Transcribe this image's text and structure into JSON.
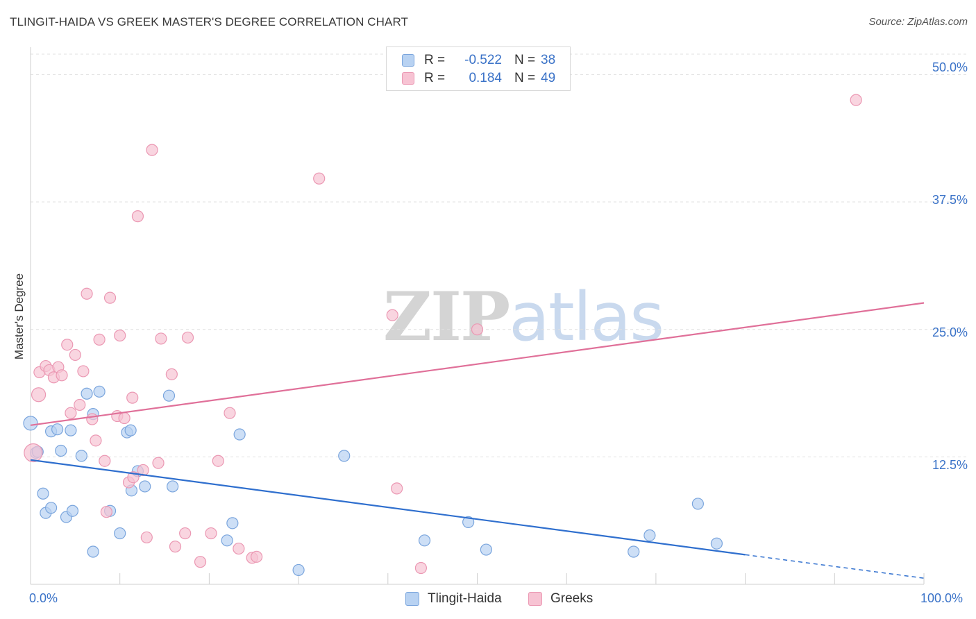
{
  "header": {
    "title": "TLINGIT-HAIDA VS GREEK MASTER'S DEGREE CORRELATION CHART",
    "source": "Source: ZipAtlas.com"
  },
  "watermark": {
    "zip": "ZIP",
    "atlas": "atlas"
  },
  "colors": {
    "blue_fill": "#b8d2f2",
    "blue_stroke": "#7aa5dd",
    "blue_line": "#2f6fce",
    "pink_fill": "#f7c3d3",
    "pink_stroke": "#eb98b3",
    "pink_line": "#e07099",
    "tick_text": "#3b73c8",
    "grid": "#e0e0e0"
  },
  "legend": {
    "series": [
      {
        "name": "Tlingit-Haida",
        "r_label": "R =",
        "r_value": "-0.522",
        "n_label": "N =",
        "n_value": "38"
      },
      {
        "name": "Greeks",
        "r_label": "R =",
        "r_value": "0.184",
        "n_label": "N =",
        "n_value": "49"
      }
    ]
  },
  "chart_data": {
    "type": "scatter",
    "title": "TLINGIT-HAIDA VS GREEK MASTER'S DEGREE CORRELATION CHART",
    "xlabel": "",
    "ylabel": "Master's Degree",
    "xlim": [
      0,
      100
    ],
    "ylim": [
      0,
      52
    ],
    "x_tick_labels": [
      "0.0%",
      "100.0%"
    ],
    "y_ticks": [
      12.5,
      25.0,
      37.5,
      50.0
    ],
    "y_tick_labels": [
      "12.5%",
      "25.0%",
      "37.5%",
      "50.0%"
    ],
    "grid": true,
    "legend_position": "top-center",
    "series": [
      {
        "name": "Tlingit-Haida",
        "color": "#b8d2f2",
        "points": [
          [
            0.0,
            15.8
          ],
          [
            0.6,
            12.9
          ],
          [
            0.8,
            13.0
          ],
          [
            1.4,
            8.9
          ],
          [
            1.7,
            7.0
          ],
          [
            2.3,
            7.5
          ],
          [
            2.3,
            15.0
          ],
          [
            3.0,
            15.2
          ],
          [
            3.4,
            13.1
          ],
          [
            4.0,
            6.6
          ],
          [
            4.5,
            15.1
          ],
          [
            4.7,
            7.2
          ],
          [
            5.7,
            12.6
          ],
          [
            6.3,
            18.7
          ],
          [
            7.0,
            16.7
          ],
          [
            7.0,
            3.2
          ],
          [
            7.7,
            18.9
          ],
          [
            8.9,
            7.2
          ],
          [
            10.0,
            5.0
          ],
          [
            10.8,
            14.9
          ],
          [
            11.2,
            15.1
          ],
          [
            11.3,
            9.2
          ],
          [
            12.0,
            11.1
          ],
          [
            12.8,
            9.6
          ],
          [
            15.5,
            18.5
          ],
          [
            15.9,
            9.6
          ],
          [
            22.0,
            4.3
          ],
          [
            22.6,
            6.0
          ],
          [
            23.4,
            14.7
          ],
          [
            30.0,
            1.4
          ],
          [
            35.1,
            12.6
          ],
          [
            44.1,
            4.3
          ],
          [
            49.0,
            6.1
          ],
          [
            51.0,
            3.4
          ],
          [
            67.5,
            3.2
          ],
          [
            69.3,
            4.8
          ],
          [
            74.7,
            7.9
          ],
          [
            76.8,
            4.0
          ]
        ]
      },
      {
        "name": "Greeks",
        "color": "#f7c3d3",
        "points": [
          [
            0.3,
            12.9
          ],
          [
            0.9,
            18.6
          ],
          [
            1.0,
            20.8
          ],
          [
            1.7,
            21.4
          ],
          [
            2.1,
            21.0
          ],
          [
            2.6,
            20.3
          ],
          [
            3.1,
            21.3
          ],
          [
            3.5,
            20.5
          ],
          [
            4.1,
            23.5
          ],
          [
            4.5,
            16.8
          ],
          [
            5.0,
            22.5
          ],
          [
            5.5,
            17.6
          ],
          [
            5.9,
            20.9
          ],
          [
            6.3,
            28.5
          ],
          [
            6.9,
            16.2
          ],
          [
            7.3,
            14.1
          ],
          [
            7.7,
            24.0
          ],
          [
            8.3,
            12.1
          ],
          [
            8.5,
            7.1
          ],
          [
            8.9,
            28.1
          ],
          [
            9.7,
            16.5
          ],
          [
            10.0,
            24.4
          ],
          [
            10.5,
            16.3
          ],
          [
            11.0,
            10.0
          ],
          [
            11.4,
            18.3
          ],
          [
            11.5,
            10.5
          ],
          [
            12.0,
            36.1
          ],
          [
            12.6,
            11.2
          ],
          [
            13.0,
            4.6
          ],
          [
            13.6,
            42.6
          ],
          [
            14.3,
            11.9
          ],
          [
            14.6,
            24.1
          ],
          [
            15.8,
            20.6
          ],
          [
            16.2,
            3.7
          ],
          [
            17.3,
            5.0
          ],
          [
            17.6,
            24.2
          ],
          [
            19.0,
            2.2
          ],
          [
            20.2,
            5.0
          ],
          [
            21.0,
            12.1
          ],
          [
            22.3,
            16.8
          ],
          [
            23.3,
            3.5
          ],
          [
            24.8,
            2.6
          ],
          [
            25.3,
            2.7
          ],
          [
            32.3,
            39.8
          ],
          [
            40.5,
            26.4
          ],
          [
            41.0,
            9.4
          ],
          [
            43.7,
            1.6
          ],
          [
            50.0,
            25.0
          ],
          [
            92.4,
            47.5
          ]
        ]
      }
    ],
    "trendlines": [
      {
        "series": "Tlingit-Haida",
        "x0": 0,
        "y0": 12.2,
        "x1": 80,
        "y1": 2.9,
        "dashed_to_x": 100,
        "dashed_to_y": 0.6
      },
      {
        "series": "Greeks",
        "x0": 0,
        "y0": 15.6,
        "x1": 100,
        "y1": 27.6
      }
    ]
  }
}
